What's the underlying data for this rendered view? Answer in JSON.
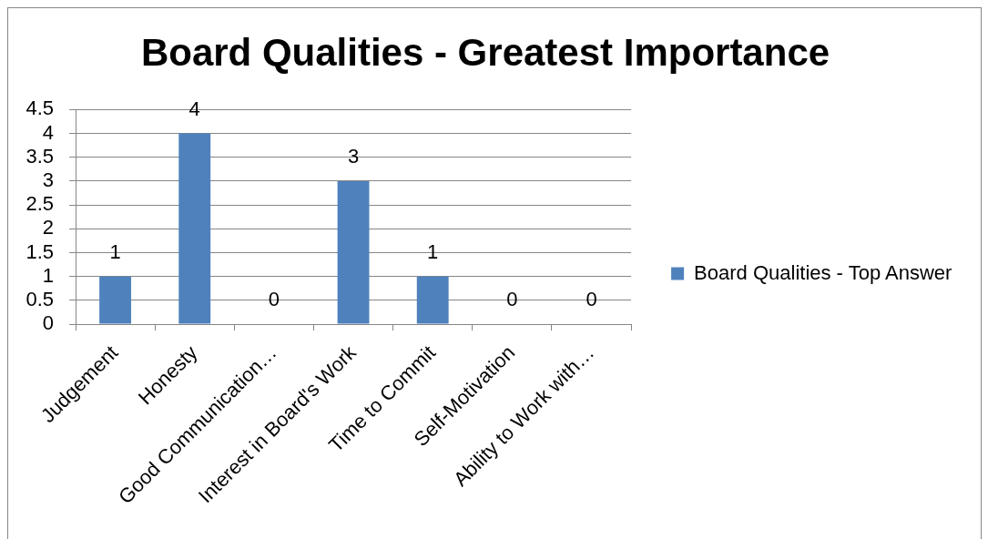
{
  "chart_data": {
    "type": "bar",
    "title": "Board Qualities - Greatest Importance",
    "categories": [
      "Judgement",
      "Honesty",
      "Good Communication…",
      "Interest in Board's Work",
      "Time to Commit",
      "Self-Motivation",
      "Ability to Work with…"
    ],
    "series": [
      {
        "name": "Board Qualities - Top Answer",
        "color": "#4f81bd",
        "values": [
          1,
          4,
          0,
          3,
          1,
          0,
          0
        ]
      }
    ],
    "ylim": [
      0,
      4.5
    ],
    "yticks": [
      0,
      0.5,
      1,
      1.5,
      2,
      2.5,
      3,
      3.5,
      4,
      4.5
    ],
    "grid": "y",
    "legend": "right",
    "data_labels": true
  }
}
